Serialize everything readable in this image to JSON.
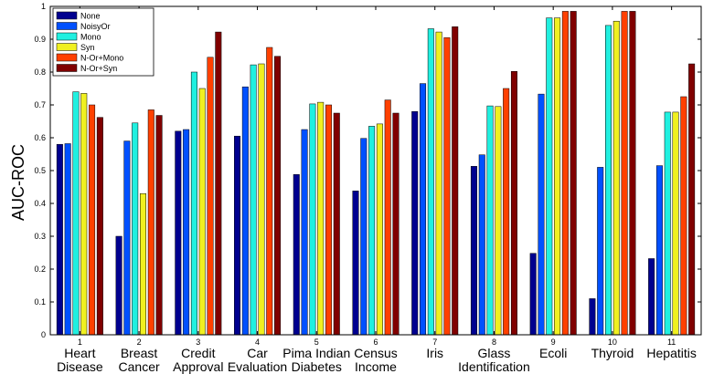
{
  "chart_data": {
    "type": "bar",
    "ylabel": "AUC-ROC",
    "ylim": [
      0,
      1
    ],
    "yticks": [
      "0",
      "0.1",
      "0.2",
      "0.3",
      "0.4",
      "0.5",
      "0.6",
      "0.7",
      "0.8",
      "0.9",
      "1"
    ],
    "grid": false,
    "legend_position": "top-left",
    "categories": [
      {
        "index": "1",
        "line1": "Heart",
        "line2": "Disease"
      },
      {
        "index": "2",
        "line1": "Breast",
        "line2": "Cancer"
      },
      {
        "index": "3",
        "line1": "Credit",
        "line2": "Approval"
      },
      {
        "index": "4",
        "line1": "Car",
        "line2": "Evaluation"
      },
      {
        "index": "5",
        "line1": "Pima Indian",
        "line2": "Diabetes"
      },
      {
        "index": "6",
        "line1": "Census",
        "line2": "Income"
      },
      {
        "index": "7",
        "line1": "Iris",
        "line2": ""
      },
      {
        "index": "8",
        "line1": "Glass",
        "line2": "Identification"
      },
      {
        "index": "9",
        "line1": "Ecoli",
        "line2": ""
      },
      {
        "index": "10",
        "line1": "Thyroid",
        "line2": ""
      },
      {
        "index": "11",
        "line1": "Hepatitis",
        "line2": ""
      }
    ],
    "series": [
      {
        "name": "None",
        "color": "#00008f",
        "values": [
          0.58,
          0.3,
          0.62,
          0.605,
          0.488,
          0.438,
          0.68,
          0.513,
          0.248,
          0.11,
          0.232
        ]
      },
      {
        "name": "NoisyOr",
        "color": "#0050ff",
        "values": [
          0.582,
          0.59,
          0.625,
          0.755,
          0.625,
          0.598,
          0.765,
          0.548,
          0.733,
          0.51,
          0.515
        ]
      },
      {
        "name": "Mono",
        "color": "#20f0e0",
        "values": [
          0.74,
          0.645,
          0.8,
          0.822,
          0.703,
          0.635,
          0.932,
          0.697,
          0.965,
          0.942,
          0.678
        ]
      },
      {
        "name": "Syn",
        "color": "#f0f020",
        "values": [
          0.735,
          0.43,
          0.75,
          0.825,
          0.708,
          0.642,
          0.922,
          0.695,
          0.965,
          0.955,
          0.678
        ]
      },
      {
        "name": "N-Or+Mono",
        "color": "#ff4000",
        "values": [
          0.7,
          0.685,
          0.845,
          0.875,
          0.7,
          0.715,
          0.905,
          0.75,
          0.985,
          0.985,
          0.725
        ]
      },
      {
        "name": "N-Or+Syn",
        "color": "#800000",
        "values": [
          0.662,
          0.668,
          0.922,
          0.848,
          0.675,
          0.675,
          0.938,
          0.802,
          0.985,
          0.985,
          0.825
        ]
      }
    ]
  }
}
